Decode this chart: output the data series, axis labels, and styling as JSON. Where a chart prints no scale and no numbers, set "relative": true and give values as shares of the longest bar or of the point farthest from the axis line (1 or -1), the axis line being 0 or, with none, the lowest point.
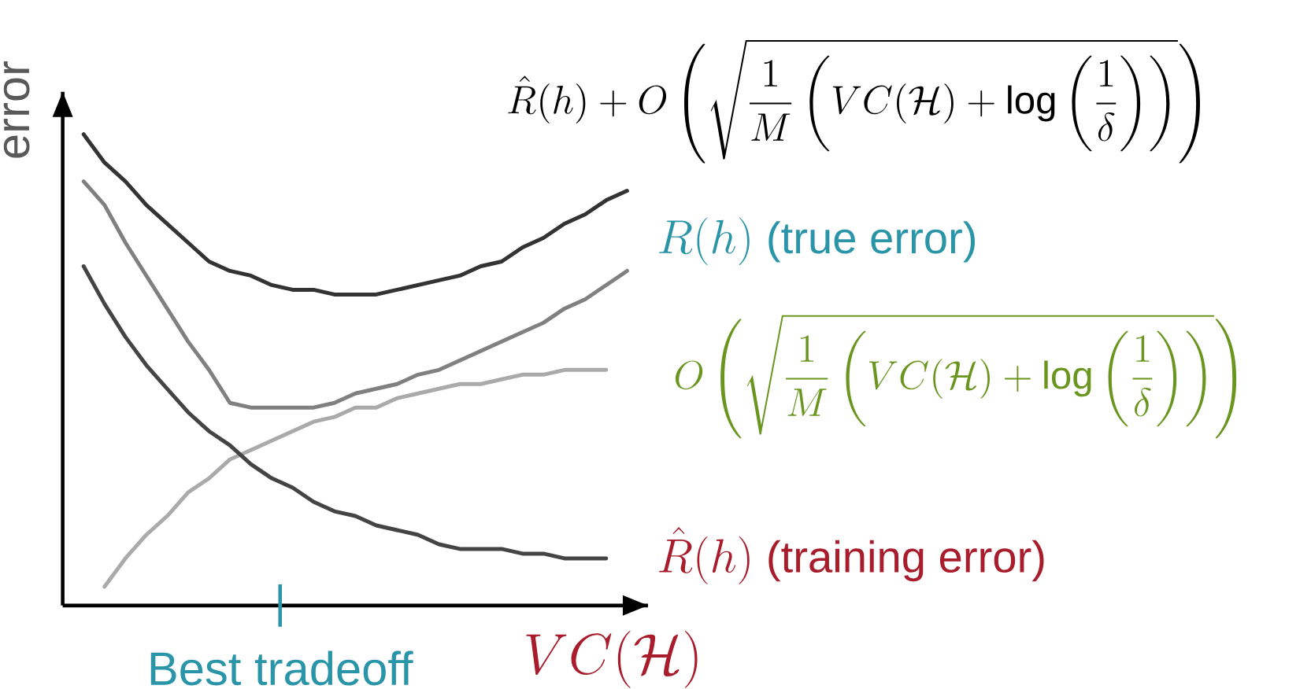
{
  "chart_data": {
    "type": "line",
    "relative": true,
    "xlabel": "VC(\\mathcal{H})",
    "ylabel": "error",
    "categories": [
      null,
      null,
      null,
      null,
      null,
      null,
      null,
      null,
      null,
      null,
      null,
      null,
      null,
      null,
      null,
      null,
      null,
      null,
      null,
      null,
      null,
      null,
      null,
      null,
      null,
      null,
      null
    ],
    "series": [
      {
        "name": "\\hat{R}(h) + O\\left(\\sqrt{\\frac{1}{M}\\left(VC(\\mathcal{H}) + \\log\\left(\\frac{1}{\\delta}\\right)\\right)}\\right)",
        "color": "#333333",
        "values": [
          1.0,
          0.94,
          0.9,
          0.85,
          0.81,
          0.77,
          0.73,
          0.71,
          0.7,
          0.68,
          0.67,
          0.67,
          0.66,
          0.66,
          0.66,
          0.67,
          0.68,
          0.69,
          0.7,
          0.72,
          0.73,
          0.76,
          0.78,
          0.81,
          0.83,
          0.86,
          0.88
        ]
      },
      {
        "name": "R(h)\\ \\text{(true error)}",
        "color": "#808080",
        "values": [
          0.9,
          0.85,
          0.77,
          0.7,
          0.63,
          0.56,
          0.5,
          0.43,
          0.42,
          0.42,
          0.42,
          0.42,
          0.43,
          0.45,
          0.46,
          0.47,
          0.49,
          0.5,
          0.52,
          0.54,
          0.56,
          0.58,
          0.6,
          0.63,
          0.65,
          0.68,
          0.71
        ]
      },
      {
        "name": "O\\left(\\sqrt{\\frac{1}{M}\\left(VC(\\mathcal{H}) + \\log\\left(\\frac{1}{\\delta}\\right)\\right)}\\right)",
        "color": "#aaaaaa",
        "values": [
          null,
          0.04,
          0.1,
          0.15,
          0.19,
          0.24,
          0.27,
          0.31,
          0.33,
          0.35,
          0.37,
          0.39,
          0.4,
          0.42,
          0.42,
          0.44,
          0.45,
          0.46,
          0.47,
          0.47,
          0.48,
          0.49,
          0.49,
          0.5,
          0.5,
          0.5,
          null
        ]
      },
      {
        "name": "\\hat{R}(h)\\ \\text{(training error)}",
        "color": "#444444",
        "values": [
          0.72,
          0.64,
          0.57,
          0.51,
          0.46,
          0.41,
          0.37,
          0.34,
          0.3,
          0.27,
          0.25,
          0.22,
          0.2,
          0.19,
          0.17,
          0.16,
          0.15,
          0.13,
          0.12,
          0.12,
          0.12,
          0.11,
          0.11,
          0.1,
          0.1,
          0.1,
          null
        ]
      }
    ],
    "annotations": [
      "Best tradeoff"
    ]
  }
}
